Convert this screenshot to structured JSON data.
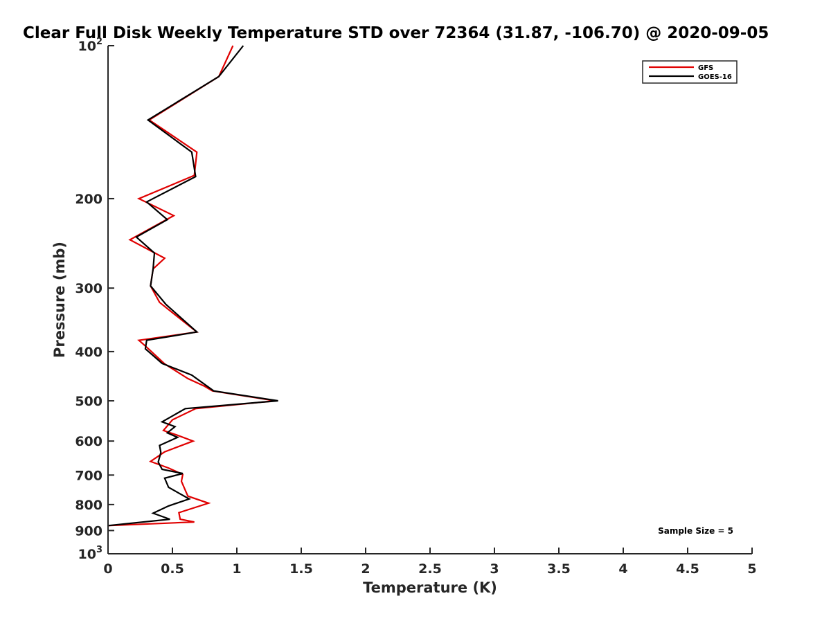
{
  "chart_data": {
    "type": "line",
    "title": "Clear Full Disk Weekly Temperature STD over 72364 (31.87, -106.70) @ 2020-09-05",
    "xlabel": "Temperature (K)",
    "ylabel": "Pressure (mb)",
    "xlim": [
      0,
      5
    ],
    "ylim": [
      100,
      1000
    ],
    "y_scale": "log",
    "y_reversed": true,
    "x_ticks": [
      "0",
      "0.5",
      "1",
      "1.5",
      "2",
      "2.5",
      "3",
      "3.5",
      "4",
      "4.5",
      "5"
    ],
    "x_tick_values": [
      0,
      0.5,
      1,
      1.5,
      2,
      2.5,
      3,
      3.5,
      4,
      4.5,
      5
    ],
    "y_ticks": [
      {
        "value": 100,
        "base": "10",
        "exp": "2"
      },
      {
        "value": 200,
        "label": "200"
      },
      {
        "value": 300,
        "label": "300"
      },
      {
        "value": 400,
        "label": "400"
      },
      {
        "value": 500,
        "label": "500"
      },
      {
        "value": 600,
        "label": "600"
      },
      {
        "value": 700,
        "label": "700"
      },
      {
        "value": 800,
        "label": "800"
      },
      {
        "value": 900,
        "label": "900"
      },
      {
        "value": 1000,
        "base": "10",
        "exp": "3"
      }
    ],
    "grid": false,
    "legend_position": "top-right",
    "series": [
      {
        "name": "GFS",
        "color": "#e00000",
        "points": [
          [
            0.97,
            100
          ],
          [
            0.86,
            115
          ],
          [
            0.32,
            140
          ],
          [
            0.69,
            162
          ],
          [
            0.67,
            180
          ],
          [
            0.24,
            200
          ],
          [
            0.51,
            216
          ],
          [
            0.17,
            241
          ],
          [
            0.44,
            262
          ],
          [
            0.35,
            275
          ],
          [
            0.33,
            297
          ],
          [
            0.4,
            320
          ],
          [
            0.58,
            348
          ],
          [
            0.69,
            366
          ],
          [
            0.24,
            380
          ],
          [
            0.29,
            390
          ],
          [
            0.44,
            423
          ],
          [
            0.62,
            452
          ],
          [
            0.75,
            468
          ],
          [
            0.81,
            478
          ],
          [
            1.3,
            500
          ],
          [
            0.68,
            518
          ],
          [
            0.5,
            545
          ],
          [
            0.43,
            572
          ],
          [
            0.52,
            582
          ],
          [
            0.66,
            600
          ],
          [
            0.44,
            630
          ],
          [
            0.33,
            658
          ],
          [
            0.47,
            678
          ],
          [
            0.58,
            698
          ],
          [
            0.57,
            720
          ],
          [
            0.6,
            750
          ],
          [
            0.62,
            770
          ],
          [
            0.78,
            795
          ],
          [
            0.55,
            830
          ],
          [
            0.56,
            855
          ],
          [
            0.67,
            866
          ],
          [
            0.0,
            880
          ]
        ]
      },
      {
        "name": "GOES-16",
        "color": "#000000",
        "points": [
          [
            1.05,
            100
          ],
          [
            0.86,
            115
          ],
          [
            0.31,
            140
          ],
          [
            0.65,
            162
          ],
          [
            0.68,
            181
          ],
          [
            0.3,
            203
          ],
          [
            0.46,
            220
          ],
          [
            0.22,
            238
          ],
          [
            0.36,
            256
          ],
          [
            0.35,
            275
          ],
          [
            0.33,
            297
          ],
          [
            0.45,
            323
          ],
          [
            0.69,
            366
          ],
          [
            0.3,
            380
          ],
          [
            0.29,
            395
          ],
          [
            0.42,
            422
          ],
          [
            0.65,
            445
          ],
          [
            0.78,
            470
          ],
          [
            0.82,
            478
          ],
          [
            1.32,
            500
          ],
          [
            0.6,
            518
          ],
          [
            0.42,
            550
          ],
          [
            0.52,
            562
          ],
          [
            0.46,
            578
          ],
          [
            0.54,
            590
          ],
          [
            0.4,
            612
          ],
          [
            0.41,
            632
          ],
          [
            0.39,
            660
          ],
          [
            0.42,
            682
          ],
          [
            0.58,
            695
          ],
          [
            0.44,
            710
          ],
          [
            0.47,
            740
          ],
          [
            0.63,
            780
          ],
          [
            0.47,
            805
          ],
          [
            0.35,
            832
          ],
          [
            0.48,
            855
          ],
          [
            0.0,
            880
          ]
        ]
      }
    ],
    "annotations": [
      {
        "text": "Sample Size = 5"
      }
    ]
  }
}
